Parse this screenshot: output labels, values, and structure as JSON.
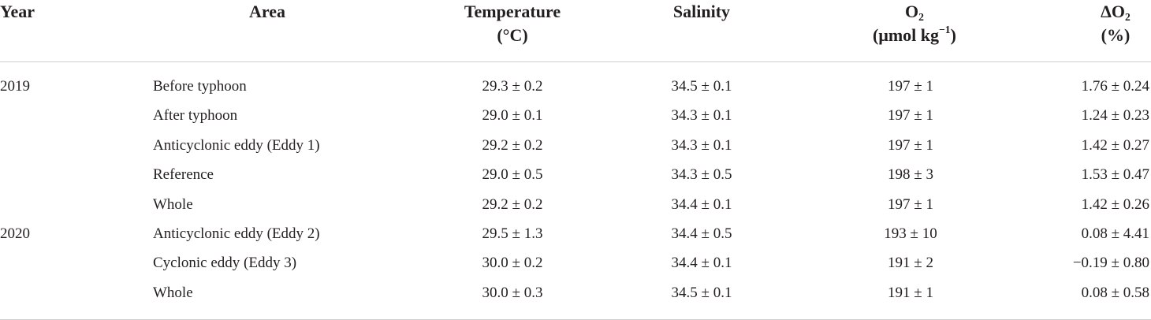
{
  "table": {
    "headers": {
      "year": "Year",
      "area": "Area",
      "temperature": "Temperature",
      "temperature_unit": "(°C)",
      "salinity": "Salinity",
      "o2_main": "O",
      "o2_sub": "2",
      "o2_unit_pre": "(μmol kg",
      "o2_unit_sup": "−1",
      "o2_unit_post": ")",
      "do2_main": "ΔO",
      "do2_sub": "2",
      "do2_unit": "(%)"
    },
    "rows": [
      {
        "year": "2019",
        "area": "Before typhoon",
        "temperature": "29.3 ± 0.2",
        "salinity": "34.5 ± 0.1",
        "o2": "197 ± 1",
        "do2": "1.76 ± 0.24"
      },
      {
        "year": "",
        "area": "After typhoon",
        "temperature": "29.0 ± 0.1",
        "salinity": "34.3 ± 0.1",
        "o2": "197 ± 1",
        "do2": "1.24 ± 0.23"
      },
      {
        "year": "",
        "area": "Anticyclonic eddy (Eddy 1)",
        "temperature": "29.2 ± 0.2",
        "salinity": "34.3 ± 0.1",
        "o2": "197 ± 1",
        "do2": "1.42 ± 0.27"
      },
      {
        "year": "",
        "area": "Reference",
        "temperature": "29.0 ± 0.5",
        "salinity": "34.3 ± 0.5",
        "o2": "198 ± 3",
        "do2": "1.53 ± 0.47"
      },
      {
        "year": "",
        "area": "Whole",
        "temperature": "29.2 ± 0.2",
        "salinity": "34.4 ± 0.1",
        "o2": "197 ± 1",
        "do2": "1.42 ± 0.26"
      },
      {
        "year": "2020",
        "area": "Anticyclonic eddy (Eddy 2)",
        "temperature": "29.5 ± 1.3",
        "salinity": "34.4 ± 0.5",
        "o2": "193 ± 10",
        "do2": "0.08 ± 4.41"
      },
      {
        "year": "",
        "area": "Cyclonic eddy (Eddy 3)",
        "temperature": "30.0 ± 0.2",
        "salinity": "34.4 ± 0.1",
        "o2": "191 ± 2",
        "do2": "−0.19 ± 0.80"
      },
      {
        "year": "",
        "area": "Whole",
        "temperature": "30.0 ± 0.3",
        "salinity": "34.5 ± 0.1",
        "o2": "191 ± 1",
        "do2": "0.08 ± 0.58"
      }
    ]
  }
}
